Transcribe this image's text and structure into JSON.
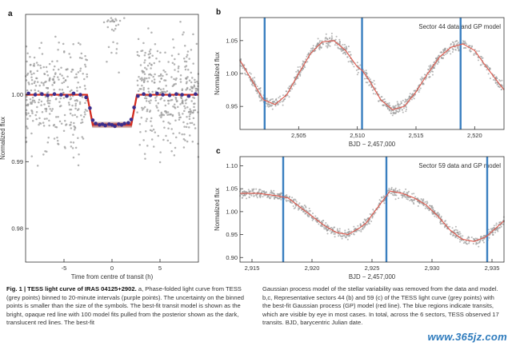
{
  "caption": {
    "title": "Fig. 1 | TESS light curve of IRAS 04125+2902.",
    "left_body": "a, Phase-folded light curve from TESS (grey points) binned to 20-minute intervals (purple points). The uncertainty on the binned points is smaller than the size of the symbols. The best-fit transit model is shown as the bright, opaque red line with 100 model fits pulled from the posterior shown as the dark, translucent red lines. The best-fit",
    "right_body": "Gaussian process model of the stellar variability was removed from the data and model. b,c, Representative sectors 44 (b) and 59 (c) of the TESS light curve (grey points) with the best-fit Gaussian process (GP) model (red line). The blue regions indicate transits, which are visible by eye in most cases. In total, across the 6 sectors, TESS observed 17 transits. BJD, barycentric Julian date."
  },
  "watermark": "www.365jz.com",
  "colors": {
    "data_grey": "#9a9a9a",
    "binned_purple": "#3b2d8c",
    "model_red": "#d62b1e",
    "posterior_red": "#8a1a12",
    "transit_blue": "#3a7fc0",
    "gp_line": "#e05a4e"
  },
  "chart_data": [
    {
      "panel_label": "a",
      "type": "scatter",
      "xlabel": "Time from centre of transit (h)",
      "ylabel": "Normalized flux",
      "xlim": [
        -9,
        9
      ],
      "ylim": [
        0.975,
        1.012
      ],
      "xticks": [
        -5,
        0,
        5
      ],
      "yticks": [
        0.98,
        0.99,
        1.0
      ],
      "ytick_labels": [
        "0.98",
        "0.99",
        "1.00"
      ],
      "grid": false,
      "transit_model": {
        "baseline": 1.0,
        "depth": 0.0045,
        "ingress_start": -2.6,
        "ingress_end": -2.0,
        "egress_start": 2.0,
        "egress_end": 2.6
      },
      "binned_points": {
        "x": [
          -8.7,
          -8.0,
          -7.3,
          -6.7,
          -6.0,
          -5.3,
          -4.7,
          -4.0,
          -3.3,
          -2.7,
          -2.3,
          -2.0,
          -1.7,
          -1.3,
          -1.0,
          -0.7,
          -0.3,
          0.0,
          0.3,
          0.7,
          1.0,
          1.3,
          1.7,
          2.0,
          2.3,
          2.7,
          3.3,
          4.0,
          4.7,
          5.3,
          6.0,
          6.7,
          7.3,
          8.0,
          8.7
        ],
        "y": [
          1.0002,
          1.0,
          1.0001,
          0.9999,
          1.0001,
          1.0,
          0.9998,
          1.0002,
          1.0,
          0.9996,
          0.998,
          0.9962,
          0.9957,
          0.9955,
          0.9956,
          0.9954,
          0.9956,
          0.9955,
          0.9953,
          0.9956,
          0.9955,
          0.9957,
          0.9958,
          0.9963,
          0.9981,
          0.9998,
          1.0001,
          0.9999,
          1.0002,
          1.0,
          0.9999,
          1.0001,
          1.0,
          0.9998,
          1.0001
        ]
      }
    },
    {
      "panel_label": "b",
      "type": "line",
      "annotation": "Sector 44 data and GP model",
      "xlabel": "BJD − 2,457,000",
      "ylabel": "Normalized flux",
      "xlim": [
        2500.0,
        2522.5
      ],
      "ylim": [
        0.915,
        1.085
      ],
      "xticks": [
        2505,
        2510,
        2515,
        2520
      ],
      "xtick_labels": [
        "2,505",
        "2,510",
        "2,515",
        "2,520"
      ],
      "yticks": [
        0.95,
        1.0,
        1.05
      ],
      "ytick_labels": [
        "0.95",
        "1.00",
        "1.05"
      ],
      "transits": [
        2502.1,
        2510.4,
        2518.8
      ],
      "gp_model": {
        "x": [
          2500.0,
          2501.0,
          2502.0,
          2503.0,
          2504.0,
          2505.0,
          2506.0,
          2507.0,
          2508.0,
          2509.0,
          2510.0,
          2510.4,
          2511.0,
          2512.0,
          2513.0,
          2514.0,
          2515.0,
          2516.0,
          2517.0,
          2518.0,
          2519.0,
          2520.0,
          2521.0,
          2522.5
        ],
        "y": [
          1.02,
          0.99,
          0.96,
          0.953,
          0.968,
          1.0,
          1.03,
          1.048,
          1.05,
          1.035,
          1.01,
          1.005,
          0.99,
          0.96,
          0.945,
          0.95,
          0.972,
          1.0,
          1.025,
          1.04,
          1.045,
          1.035,
          1.01,
          0.975
        ]
      }
    },
    {
      "panel_label": "c",
      "type": "line",
      "annotation": "Sector 59 data and GP model",
      "xlabel": "BJD − 2,457,000",
      "ylabel": "Normalized flux",
      "xlim": [
        2914.0,
        2936.0
      ],
      "ylim": [
        0.89,
        1.12
      ],
      "xticks": [
        2915,
        2920,
        2925,
        2930,
        2935
      ],
      "xtick_labels": [
        "2,915",
        "2,920",
        "2,925",
        "2,930",
        "2,935"
      ],
      "yticks": [
        0.9,
        0.95,
        1.0,
        1.05,
        1.1
      ],
      "ytick_labels": [
        "0.90",
        "0.95",
        "1.00",
        "1.05",
        "1.10"
      ],
      "transits": [
        2917.6,
        2926.2,
        2934.6
      ],
      "gp_model": {
        "x": [
          2914.0,
          2915.5,
          2917.0,
          2918.0,
          2919.0,
          2920.0,
          2921.0,
          2922.0,
          2923.0,
          2924.0,
          2924.5,
          2926.5,
          2927.5,
          2928.5,
          2929.5,
          2930.5,
          2931.5,
          2932.5,
          2933.5,
          2934.5,
          2936.0
        ],
        "y": [
          1.04,
          1.04,
          1.035,
          1.03,
          1.01,
          0.99,
          0.97,
          0.955,
          0.95,
          0.965,
          0.975,
          1.045,
          1.04,
          1.03,
          1.015,
          0.99,
          0.96,
          0.94,
          0.935,
          0.945,
          0.98
        ]
      }
    }
  ]
}
